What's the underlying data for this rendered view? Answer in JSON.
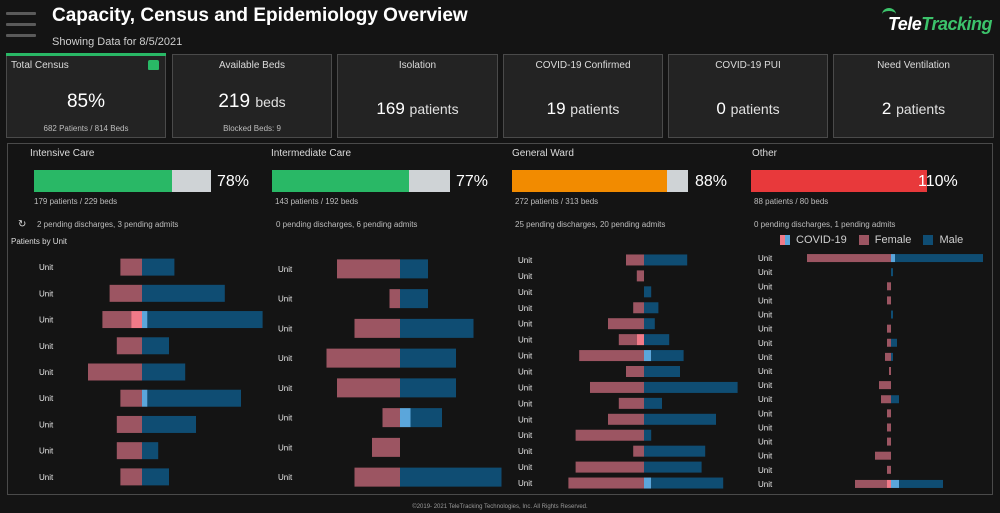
{
  "header": {
    "title": "Capacity, Census and Epidemiology Overview",
    "subtitle": "Showing Data for 8/5/2021",
    "logo_text_main": "Tele",
    "logo_text_accent": "Tracking"
  },
  "kpis": [
    {
      "label": "Total Census",
      "value": "85%",
      "unit": "",
      "sub": "682 Patients / 814 Beds"
    },
    {
      "label": "Available Beds",
      "value": "219",
      "unit": "beds",
      "sub": "Blocked Beds: 9"
    },
    {
      "label": "Isolation",
      "value": "169",
      "unit": "patients",
      "sub": ""
    },
    {
      "label": "COVID-19 Confirmed",
      "value": "19",
      "unit": "patients",
      "sub": ""
    },
    {
      "label": "COVID-19 PUI",
      "value": "0",
      "unit": "patients",
      "sub": ""
    },
    {
      "label": "Need Ventilation",
      "value": "2",
      "unit": "patients",
      "sub": ""
    }
  ],
  "units": [
    {
      "name": "Intensive Care",
      "pct_label": "78%",
      "occupancy": 0.78,
      "color": "#29b866",
      "beds_text": "179 patients / 229 beds",
      "pending_text": "2 pending discharges,   3 pending admits"
    },
    {
      "name": "Intermediate Care",
      "pct_label": "77%",
      "occupancy": 0.77,
      "color": "#29b866",
      "beds_text": "143 patients / 192 beds",
      "pending_text": "0 pending discharges,   6 pending admits"
    },
    {
      "name": "General Ward",
      "pct_label": "88%",
      "occupancy": 0.88,
      "color": "#f28b00",
      "beds_text": "272 patients / 313 beds",
      "pending_text": "25 pending discharges,   20 pending admits"
    },
    {
      "name": "Other",
      "pct_label": "110%",
      "occupancy": 1.1,
      "color": "#e8393b",
      "beds_text": "88 patients / 80 beds",
      "pending_text": "0 pending discharges,   1 pending admits"
    }
  ],
  "patients_by_unit_label": "Patients by Unit",
  "refresh_icon": "refresh-icon",
  "legend": {
    "covid": "COVID-19",
    "female": "Female",
    "male": "Male"
  },
  "colors": {
    "female": "#9c5562",
    "male": "#0f4d73",
    "covid_female": "#f07a88",
    "covid_male": "#5ba6db"
  },
  "chart_data": [
    {
      "type": "bar",
      "title": "Intensive Care",
      "row_label": "Unit",
      "series": [
        {
          "name": "Female",
          "values": [
            6,
            9,
            8,
            7,
            15,
            6,
            7,
            7,
            6
          ]
        },
        {
          "name": "COVID-19 Female",
          "values": [
            0,
            0,
            3,
            0,
            0,
            0,
            0,
            0,
            0
          ]
        },
        {
          "name": "COVID-19 Male",
          "values": [
            0,
            0,
            1.5,
            0,
            0,
            1.5,
            0,
            0,
            0
          ]
        },
        {
          "name": "Male",
          "values": [
            9,
            23,
            32,
            7.5,
            12,
            26,
            15,
            4.5,
            7.5
          ]
        }
      ]
    },
    {
      "type": "bar",
      "title": "Intermediate Care",
      "row_label": "Unit",
      "series": [
        {
          "name": "Female",
          "values": [
            18,
            3,
            13,
            21,
            18,
            5,
            8,
            13
          ]
        },
        {
          "name": "COVID-19 Female",
          "values": [
            0,
            0,
            0,
            0,
            0,
            0,
            0,
            0
          ]
        },
        {
          "name": "COVID-19 Male",
          "values": [
            0,
            0,
            0,
            0,
            0,
            3,
            0,
            0
          ]
        },
        {
          "name": "Male",
          "values": [
            8,
            8,
            21,
            16,
            16,
            9,
            0,
            29
          ]
        }
      ]
    },
    {
      "type": "bar",
      "title": "General Ward",
      "row_label": "Unit",
      "series": [
        {
          "name": "Female",
          "values": [
            5,
            2,
            0,
            3,
            10,
            5,
            18,
            5,
            15,
            7,
            10,
            19,
            3,
            19,
            21
          ]
        },
        {
          "name": "COVID-19 Female",
          "values": [
            0,
            0,
            0,
            0,
            0,
            2,
            0,
            0,
            0,
            0,
            0,
            0,
            0,
            0,
            0
          ]
        },
        {
          "name": "COVID-19 Male",
          "values": [
            0,
            0,
            0,
            0,
            0,
            0,
            2,
            0,
            0,
            0,
            0,
            0,
            0,
            0,
            2
          ]
        },
        {
          "name": "Male",
          "values": [
            12,
            0,
            2,
            4,
            3,
            7,
            9,
            10,
            26,
            5,
            20,
            2,
            17,
            16,
            20
          ]
        }
      ]
    },
    {
      "type": "bar",
      "title": "Other",
      "row_label": "Unit",
      "series": [
        {
          "name": "Female",
          "values": [
            21,
            0,
            1,
            1,
            0,
            1,
            1,
            1.5,
            0.5,
            3,
            2.5,
            1,
            1,
            1,
            4,
            1,
            8
          ]
        },
        {
          "name": "COVID-19 Female",
          "values": [
            0,
            0,
            0,
            0,
            0,
            0,
            0,
            0,
            0,
            0,
            0,
            0,
            0,
            0,
            0,
            0,
            1
          ]
        },
        {
          "name": "COVID-19 Male",
          "values": [
            1,
            0,
            0,
            0,
            0,
            0,
            0,
            0,
            0,
            0,
            0,
            0,
            0,
            0,
            0,
            0,
            2
          ]
        },
        {
          "name": "Male",
          "values": [
            22,
            0.5,
            0,
            0,
            0.5,
            0,
            1.5,
            0.5,
            0,
            0,
            2,
            0,
            0,
            0,
            0,
            0,
            11
          ]
        }
      ]
    }
  ],
  "footer": "©2019- 2021 TeleTracking Technologies, Inc.  All Rights Reserved."
}
